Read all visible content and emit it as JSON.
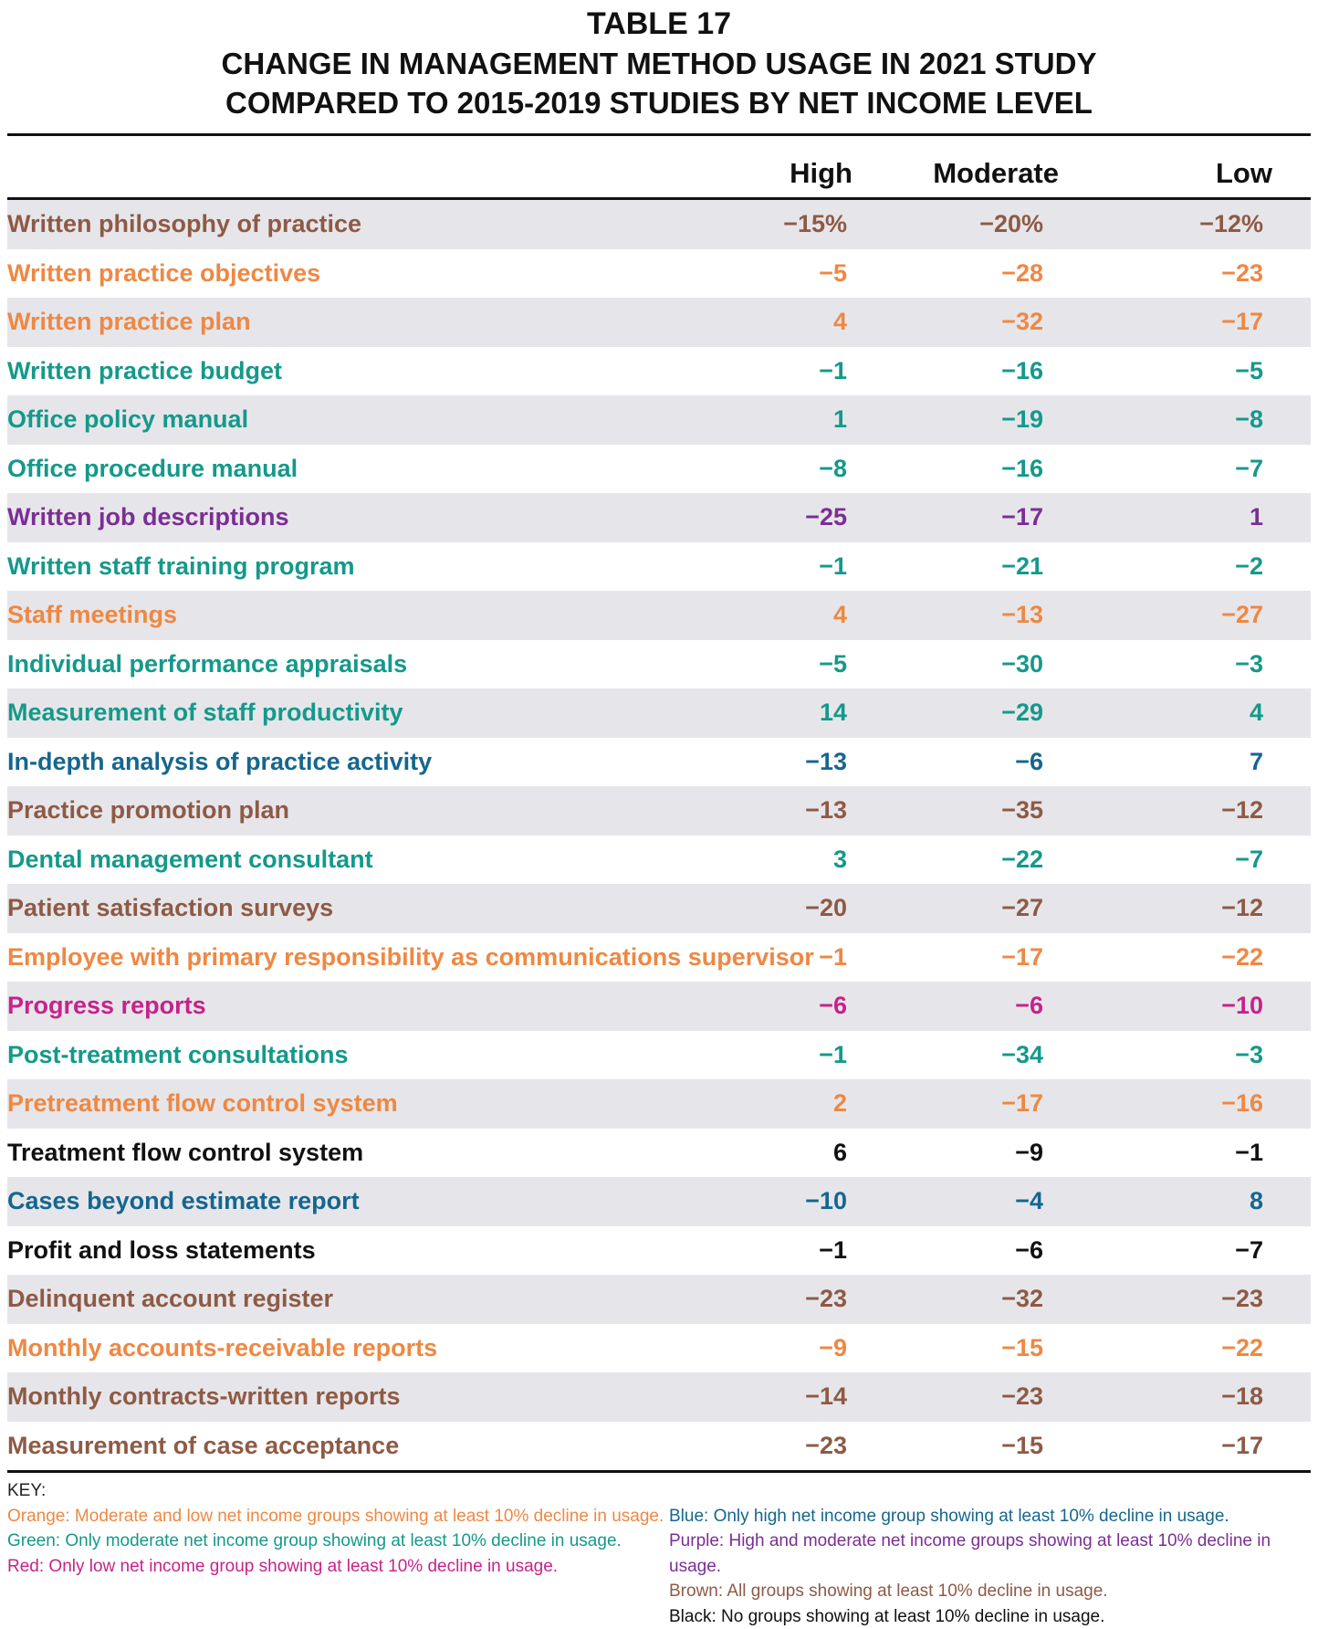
{
  "title": {
    "line1": "TABLE 17",
    "line2": "CHANGE IN MANAGEMENT METHOD USAGE IN 2021 STUDY",
    "line3": "COMPARED TO 2015-2019 STUDIES BY NET INCOME LEVEL"
  },
  "colors": {
    "orange": "#ee8843",
    "green": "#14998a",
    "blue": "#15668f",
    "purple": "#7b2e94",
    "brown": "#8e5a45",
    "black": "#111111",
    "red": "#c7228a"
  },
  "columns": [
    "High",
    "Moderate",
    "Low"
  ],
  "rows": [
    {
      "label": "Written philosophy of practice",
      "color": "brown",
      "high": "−15%",
      "moderate": "−20%",
      "low": "−12%"
    },
    {
      "label": "Written practice objectives",
      "color": "orange",
      "high": "−5",
      "moderate": "−28",
      "low": "−23"
    },
    {
      "label": "Written practice plan",
      "color": "orange",
      "high": "4",
      "moderate": "−32",
      "low": "−17"
    },
    {
      "label": "Written practice budget",
      "color": "green",
      "high": "−1",
      "moderate": "−16",
      "low": "−5"
    },
    {
      "label": "Office policy manual",
      "color": "green",
      "high": "1",
      "moderate": "−19",
      "low": "−8"
    },
    {
      "label": "Office procedure manual",
      "color": "green",
      "high": "−8",
      "moderate": "−16",
      "low": "−7"
    },
    {
      "label": "Written job descriptions",
      "color": "purple",
      "high": "−25",
      "moderate": "−17",
      "low": "1"
    },
    {
      "label": "Written staff training program",
      "color": "green",
      "high": "−1",
      "moderate": "−21",
      "low": "−2"
    },
    {
      "label": "Staff meetings",
      "color": "orange",
      "high": "4",
      "moderate": "−13",
      "low": "−27"
    },
    {
      "label": "Individual performance appraisals",
      "color": "green",
      "high": "−5",
      "moderate": "−30",
      "low": "−3"
    },
    {
      "label": "Measurement of staff productivity",
      "color": "green",
      "high": "14",
      "moderate": "−29",
      "low": "4"
    },
    {
      "label": "In-depth analysis of practice activity",
      "color": "blue",
      "high": "−13",
      "moderate": "−6",
      "low": "7"
    },
    {
      "label": "Practice promotion plan",
      "color": "brown",
      "high": "−13",
      "moderate": "−35",
      "low": "−12"
    },
    {
      "label": "Dental management consultant",
      "color": "green",
      "high": "3",
      "moderate": "−22",
      "low": "−7"
    },
    {
      "label": "Patient satisfaction surveys",
      "color": "brown",
      "high": "−20",
      "moderate": "−27",
      "low": "−12"
    },
    {
      "label": "Employee with primary responsibility as communications supervisor",
      "color": "orange",
      "high": "−1",
      "moderate": "−17",
      "low": "−22"
    },
    {
      "label": "Progress reports",
      "color": "red",
      "high": "−6",
      "moderate": "−6",
      "low": "−10"
    },
    {
      "label": "Post-treatment consultations",
      "color": "green",
      "high": "−1",
      "moderate": "−34",
      "low": "−3"
    },
    {
      "label": "Pretreatment flow control system",
      "color": "orange",
      "high": "2",
      "moderate": "−17",
      "low": "−16"
    },
    {
      "label": "Treatment flow control system",
      "color": "black",
      "high": "6",
      "moderate": "−9",
      "low": "−1"
    },
    {
      "label": "Cases beyond estimate report",
      "color": "blue",
      "high": "−10",
      "moderate": "−4",
      "low": "8"
    },
    {
      "label": "Profit and loss statements",
      "color": "black",
      "high": "−1",
      "moderate": "−6",
      "low": "−7"
    },
    {
      "label": "Delinquent account register",
      "color": "brown",
      "high": "−23",
      "moderate": "−32",
      "low": "−23"
    },
    {
      "label": "Monthly accounts-receivable reports",
      "color": "orange",
      "high": "−9",
      "moderate": "−15",
      "low": "−22"
    },
    {
      "label": "Monthly contracts-written reports",
      "color": "brown",
      "high": "−14",
      "moderate": "−23",
      "low": "−18"
    },
    {
      "label": "Measurement of case acceptance",
      "color": "brown",
      "high": "−23",
      "moderate": "−15",
      "low": "−17"
    }
  ],
  "key": {
    "heading": "KEY:",
    "left": [
      {
        "color": "orange",
        "text": "Orange: Moderate and low net income groups showing at least 10% decline in usage."
      },
      {
        "color": "green",
        "text": "Green: Only moderate net income group showing at least 10% decline in usage."
      },
      {
        "color": "red",
        "text": "Red: Only low net income group showing at least 10% decline in usage."
      }
    ],
    "right": [
      {
        "color": "blue",
        "text": "Blue: Only high net income group showing at least 10% decline in usage."
      },
      {
        "color": "purple",
        "text": "Purple: High and moderate net income groups showing at least 10% decline in usage."
      },
      {
        "color": "brown",
        "text": "Brown: All groups showing at least 10% decline in usage."
      },
      {
        "color": "black",
        "text": "Black: No groups showing at least 10% decline in usage."
      }
    ]
  }
}
